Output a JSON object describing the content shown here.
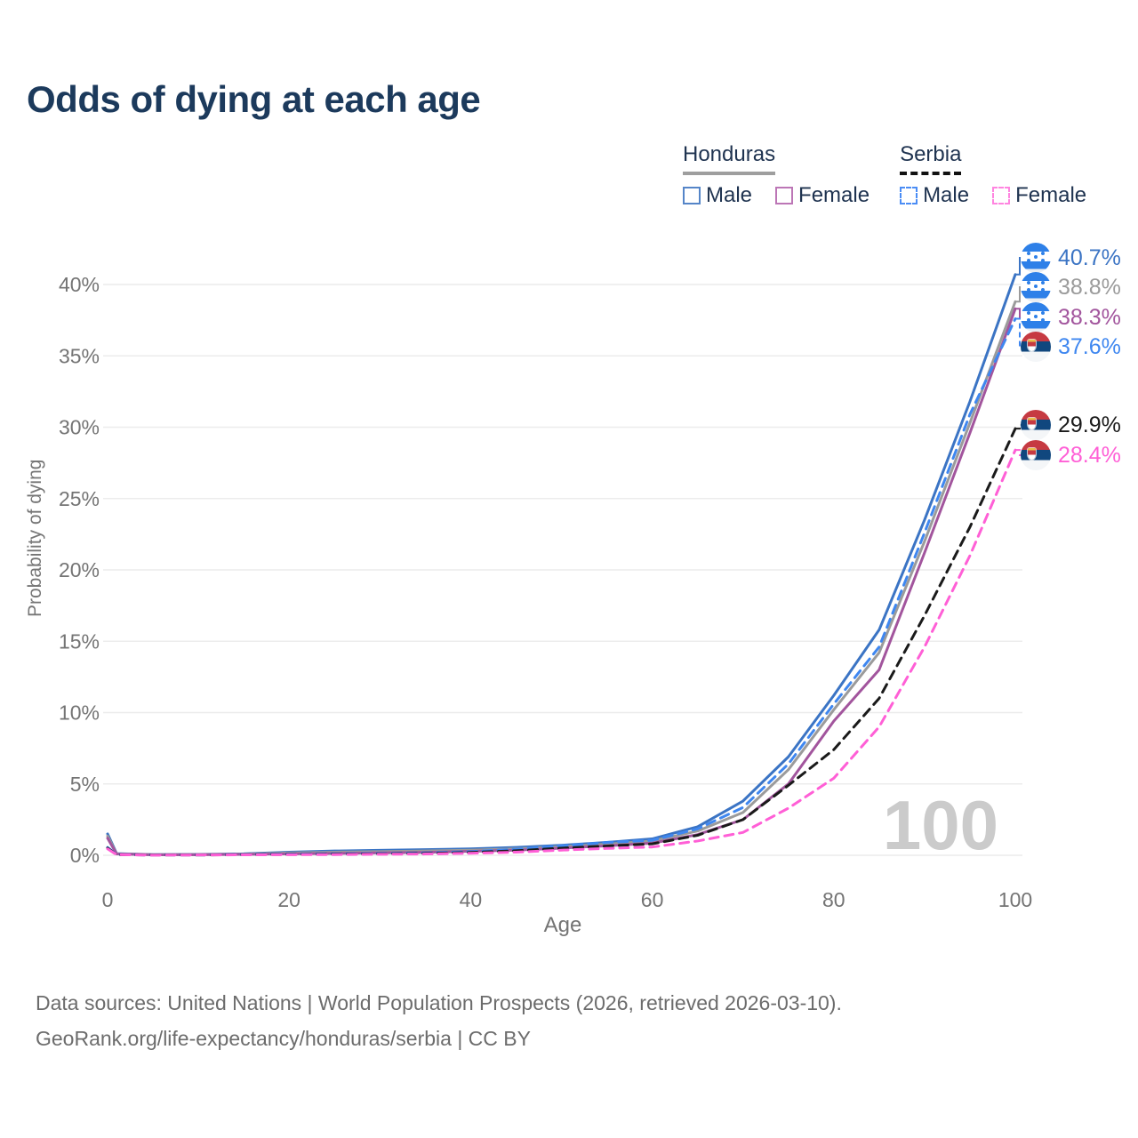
{
  "title": "Odds of dying at each age",
  "legend": {
    "groups": [
      {
        "label": "Honduras",
        "line_style": "solid",
        "underline_color": "#9e9e9e",
        "items": [
          {
            "label": "Male",
            "color": "#5585c8"
          },
          {
            "label": "Female",
            "color": "#bc76b6"
          }
        ]
      },
      {
        "label": "Serbia",
        "line_style": "dashed",
        "underline_color": "#111111",
        "items": [
          {
            "label": "Male",
            "color": "#4b8df5"
          },
          {
            "label": "Female",
            "color": "#ff85e0"
          }
        ]
      }
    ]
  },
  "chart_data": {
    "type": "line",
    "title": "Odds of dying at each age",
    "xlabel": "Age",
    "ylabel": "Probability of dying",
    "xlim": [
      0,
      100
    ],
    "ylim_percent": [
      0,
      42
    ],
    "x_ticks": [
      0,
      20,
      40,
      60,
      80,
      100
    ],
    "y_ticks": [
      "0%",
      "5%",
      "10%",
      "15%",
      "20%",
      "25%",
      "30%",
      "35%",
      "40%"
    ],
    "grid": "horizontal",
    "watermark": "100",
    "x": [
      0,
      1,
      5,
      10,
      15,
      20,
      25,
      30,
      35,
      40,
      45,
      50,
      55,
      60,
      65,
      70,
      75,
      80,
      85,
      90,
      95,
      100
    ],
    "series": [
      {
        "name": "Honduras Male",
        "country": "Honduras",
        "sex": "Male",
        "dash": false,
        "color": "#3b74c4",
        "end_label": "40.7%",
        "flag": "honduras",
        "values": [
          1.5,
          0.12,
          0.05,
          0.06,
          0.1,
          0.22,
          0.3,
          0.35,
          0.4,
          0.45,
          0.55,
          0.7,
          0.9,
          1.15,
          2.0,
          3.8,
          6.9,
          11.2,
          15.8,
          23.5,
          31.8,
          40.7
        ]
      },
      {
        "name": "Honduras Both sexes",
        "country": "Honduras",
        "sex": "Both",
        "dash": false,
        "color": "#9b9b9b",
        "end_label": "38.8%",
        "flag": "honduras",
        "values": [
          1.35,
          0.1,
          0.04,
          0.05,
          0.08,
          0.16,
          0.22,
          0.26,
          0.3,
          0.36,
          0.45,
          0.6,
          0.78,
          1.0,
          1.7,
          3.0,
          6.0,
          10.2,
          14.2,
          22.0,
          30.3,
          38.8
        ]
      },
      {
        "name": "Honduras Female",
        "country": "Honduras",
        "sex": "Female",
        "dash": false,
        "color": "#a2559d",
        "end_label": "38.3%",
        "flag": "honduras",
        "values": [
          1.2,
          0.09,
          0.03,
          0.04,
          0.06,
          0.1,
          0.13,
          0.17,
          0.2,
          0.28,
          0.36,
          0.5,
          0.66,
          0.85,
          1.45,
          2.5,
          5.0,
          9.4,
          13.0,
          21.2,
          29.6,
          38.3
        ]
      },
      {
        "name": "Serbia Male",
        "country": "Serbia",
        "sex": "Male",
        "dash": true,
        "color": "#3f87f0",
        "end_label": "37.6%",
        "flag": "serbia",
        "values": [
          0.55,
          0.05,
          0.02,
          0.02,
          0.05,
          0.09,
          0.11,
          0.13,
          0.17,
          0.26,
          0.42,
          0.66,
          0.9,
          1.05,
          1.85,
          3.35,
          6.4,
          10.6,
          14.6,
          22.6,
          30.9,
          37.6
        ]
      },
      {
        "name": "Serbia Both sexes",
        "country": "Serbia",
        "sex": "Both",
        "dash": true,
        "color": "#1a1a1a",
        "end_label": "29.9%",
        "flag": "serbia",
        "values": [
          0.5,
          0.04,
          0.02,
          0.02,
          0.04,
          0.06,
          0.08,
          0.1,
          0.13,
          0.2,
          0.32,
          0.5,
          0.65,
          0.8,
          1.4,
          2.5,
          4.9,
          7.4,
          11.0,
          16.8,
          23.0,
          29.9
        ]
      },
      {
        "name": "Serbia Female",
        "country": "Serbia",
        "sex": "Female",
        "dash": true,
        "color": "#ff5fd6",
        "end_label": "28.4%",
        "flag": "serbia",
        "values": [
          0.45,
          0.04,
          0.01,
          0.02,
          0.03,
          0.04,
          0.05,
          0.07,
          0.09,
          0.14,
          0.22,
          0.36,
          0.48,
          0.58,
          1.0,
          1.6,
          3.3,
          5.4,
          9.0,
          14.6,
          21.0,
          28.4
        ]
      }
    ]
  },
  "footer": {
    "line1": "Data sources: United Nations | World Population Prospects (2026, retrieved 2026-03-10).",
    "line2": "GeoRank.org/life-expectancy/honduras/serbia | CC BY"
  },
  "colors": {
    "title": "#1c3a5c",
    "legend_text": "#1f3350",
    "axis_text": "#747474",
    "gridline": "#ececec",
    "watermark": "#cbcbcb",
    "footer_text": "#6c6c6c"
  }
}
